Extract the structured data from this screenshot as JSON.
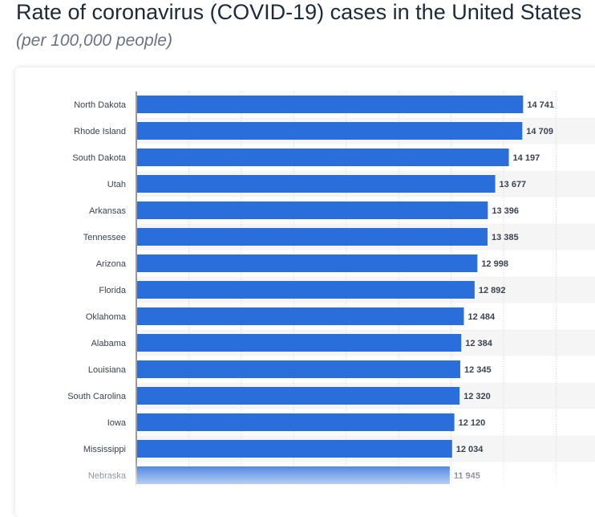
{
  "header": {
    "title": "Rate of coronavirus (COVID-19) cases in the United States",
    "subtitle": "(per 100,000 people)"
  },
  "colors": {
    "bar": "#2a6edb",
    "band": "#f5f5f5",
    "grid": "#cfd3d8",
    "axis": "#333a44"
  },
  "chart_data": {
    "type": "bar",
    "orientation": "horizontal",
    "categories": [
      "North Dakota",
      "Rhode Island",
      "South Dakota",
      "Utah",
      "Arkansas",
      "Tennessee",
      "Arizona",
      "Florida",
      "Oklahoma",
      "Alabama",
      "Louisiana",
      "South Carolina",
      "Iowa",
      "Mississippi",
      "Nebraska"
    ],
    "values": [
      14741,
      14709,
      14197,
      13677,
      13396,
      13385,
      12998,
      12892,
      12484,
      12384,
      12345,
      12320,
      12120,
      12034,
      11945
    ],
    "value_labels": [
      "14 741",
      "14 709",
      "14 197",
      "13 677",
      "13 396",
      "13 385",
      "12 998",
      "12 892",
      "12 484",
      "12 384",
      "12 345",
      "12 320",
      "12 120",
      "12 034",
      "11 945"
    ],
    "xlim": [
      0,
      18000
    ],
    "grid": true,
    "xlabel": "",
    "ylabel": ""
  }
}
